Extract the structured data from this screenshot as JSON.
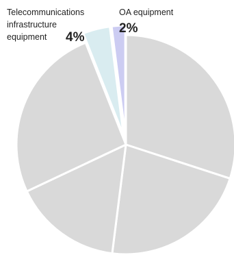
{
  "chart_data": {
    "type": "pie",
    "slices": [
      {
        "label": "",
        "value": 30.0,
        "color": "#d9d9d9",
        "pct_text": ""
      },
      {
        "label": "",
        "value": 22.0,
        "color": "#d9d9d9",
        "pct_text": ""
      },
      {
        "label": "",
        "value": 16.0,
        "color": "#d9d9d9",
        "pct_text": ""
      },
      {
        "label": "",
        "value": 26.0,
        "color": "#d9d9d9",
        "pct_text": ""
      },
      {
        "label": "Telecommunications\ninfrastructure\nequipment",
        "value": 4.0,
        "color": "#d9ecf0",
        "pct_text": "4%",
        "exploded": true
      },
      {
        "label": "OA equipment",
        "value": 2.0,
        "color": "#ccccf2",
        "pct_text": "2%",
        "exploded": true
      }
    ],
    "start_angle_deg": 0,
    "direction": "clockwise",
    "legend": "none"
  }
}
